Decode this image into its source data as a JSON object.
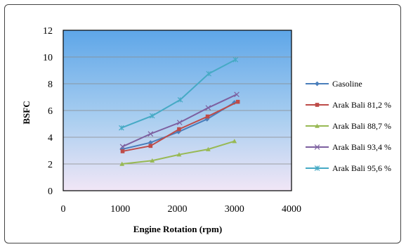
{
  "chart_data": {
    "type": "line",
    "xlabel": "Engine Rotation (rpm)",
    "ylabel": "BSFC",
    "xlim": [
      0,
      4000
    ],
    "ylim": [
      0,
      12
    ],
    "xticks": [
      0,
      1000,
      2000,
      3000,
      4000
    ],
    "yticks": [
      0,
      2,
      4,
      6,
      8,
      10,
      12
    ],
    "grid": true,
    "legend_position": "right",
    "series": [
      {
        "name": "Gasoline",
        "color": "#4a7ebb",
        "marker": "diamond",
        "x": [
          1030,
          1530,
          2020,
          2520,
          3000
        ],
        "y": [
          3.1,
          3.6,
          4.4,
          5.35,
          6.6
        ]
      },
      {
        "name": "Arak Bali 81,2 %",
        "color": "#be4b48",
        "marker": "square",
        "x": [
          1040,
          1530,
          2030,
          2530,
          3060
        ],
        "y": [
          2.95,
          3.35,
          4.6,
          5.55,
          6.65
        ]
      },
      {
        "name": "Arak Bali 88,7 %",
        "color": "#98b954",
        "marker": "triangle",
        "x": [
          1030,
          1560,
          2030,
          2540,
          3000
        ],
        "y": [
          2.0,
          2.25,
          2.7,
          3.1,
          3.7
        ]
      },
      {
        "name": "Arak Bali 93,4 %",
        "color": "#7d60a0",
        "marker": "x",
        "x": [
          1040,
          1530,
          2040,
          2540,
          3040
        ],
        "y": [
          3.3,
          4.25,
          5.1,
          6.2,
          7.2
        ]
      },
      {
        "name": "Arak Bali 95,6 %",
        "color": "#46aac5",
        "marker": "star",
        "x": [
          1020,
          1560,
          2050,
          2550,
          3020
        ],
        "y": [
          4.7,
          5.6,
          6.8,
          8.75,
          9.8
        ]
      }
    ]
  }
}
